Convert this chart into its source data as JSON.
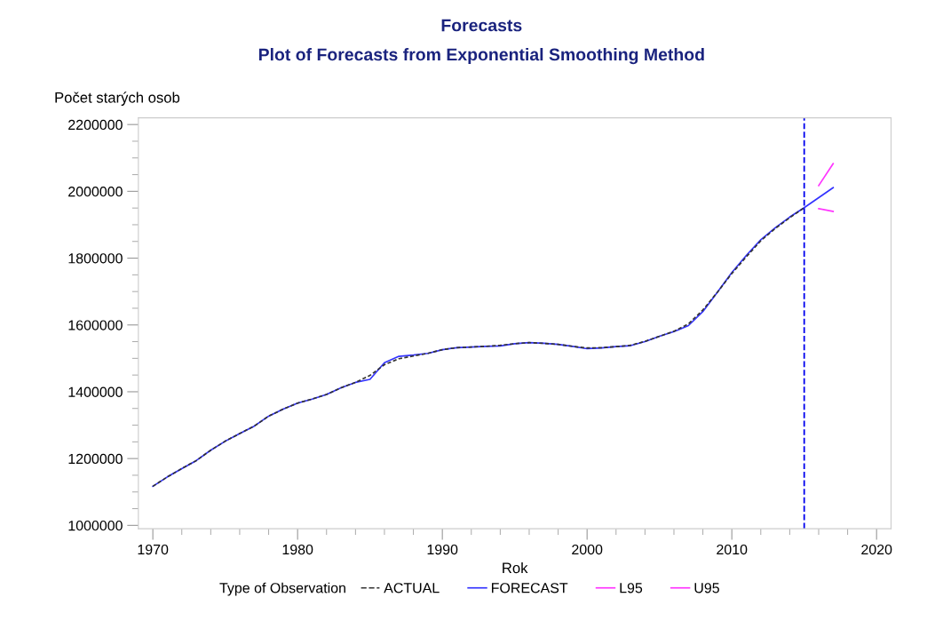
{
  "chart_data": {
    "type": "line",
    "title": "Forecasts",
    "subtitle": "Plot of Forecasts from Exponential Smoothing Method",
    "xlabel": "Rok",
    "ylabel": "Počet starých osob",
    "legend_title": "Type of Observation",
    "legend": "bottom",
    "grid": false,
    "marker": "none",
    "xlim": [
      1969,
      2021
    ],
    "xticks": [
      1970,
      1980,
      1990,
      2000,
      2010,
      2020
    ],
    "ylim": [
      990000,
      2220000
    ],
    "yticks": [
      1000000,
      1200000,
      1400000,
      1600000,
      1800000,
      2000000,
      2200000
    ],
    "ref_lines": [
      {
        "axis": "x",
        "value": 2015,
        "color": "#0000ee",
        "line_style": "dashed"
      }
    ],
    "series": [
      {
        "name": "ACTUAL",
        "color": "#333333",
        "line_style": "dashed",
        "x": [
          1970,
          1971,
          1972,
          1973,
          1974,
          1975,
          1976,
          1977,
          1978,
          1979,
          1980,
          1981,
          1982,
          1983,
          1984,
          1985,
          1986,
          1987,
          1988,
          1989,
          1990,
          1991,
          1992,
          1993,
          1994,
          1995,
          1996,
          1997,
          1998,
          1999,
          2000,
          2001,
          2002,
          2003,
          2004,
          2005,
          2006,
          2007,
          2008,
          2009,
          2010,
          2011,
          2012,
          2013,
          2014,
          2015
        ],
        "values": [
          1117000,
          1145000,
          1170000,
          1194000,
          1225000,
          1252000,
          1275000,
          1297000,
          1327000,
          1348000,
          1366000,
          1378000,
          1392000,
          1412000,
          1428000,
          1449000,
          1481000,
          1499000,
          1507000,
          1515000,
          1526000,
          1532000,
          1534000,
          1536000,
          1539000,
          1544000,
          1547000,
          1545000,
          1542000,
          1536000,
          1531000,
          1532000,
          1535000,
          1539000,
          1551000,
          1566000,
          1581000,
          1603000,
          1645000,
          1698000,
          1754000,
          1804000,
          1852000,
          1889000,
          1921000,
          1951000
        ]
      },
      {
        "name": "FORECAST",
        "color": "#3333ff",
        "line_style": "solid",
        "x": [
          1970,
          1971,
          1972,
          1973,
          1974,
          1975,
          1976,
          1977,
          1978,
          1979,
          1980,
          1981,
          1982,
          1983,
          1984,
          1985,
          1986,
          1987,
          1988,
          1989,
          1990,
          1991,
          1992,
          1993,
          1994,
          1995,
          1996,
          1997,
          1998,
          1999,
          2000,
          2001,
          2002,
          2003,
          2004,
          2005,
          2006,
          2007,
          2008,
          2009,
          2010,
          2011,
          2012,
          2013,
          2014,
          2015,
          2016,
          2017
        ],
        "values": [
          1117000,
          1145000,
          1170000,
          1194000,
          1225000,
          1252000,
          1275000,
          1297000,
          1327000,
          1348000,
          1366000,
          1378000,
          1392000,
          1412000,
          1428000,
          1437000,
          1487000,
          1506000,
          1510000,
          1515000,
          1526000,
          1532000,
          1534000,
          1536000,
          1537000,
          1544000,
          1547000,
          1545000,
          1542000,
          1536000,
          1529000,
          1531000,
          1535000,
          1538000,
          1550000,
          1566000,
          1580000,
          1598000,
          1640000,
          1698000,
          1757000,
          1808000,
          1855000,
          1891000,
          1923000,
          1951000,
          1981000,
          2011000
        ]
      },
      {
        "name": "L95",
        "color": "#ff33ff",
        "line_style": "solid",
        "x": [
          2016,
          2017
        ],
        "values": [
          1948000,
          1940000
        ]
      },
      {
        "name": "U95",
        "color": "#ff33ff",
        "line_style": "solid",
        "x": [
          2016,
          2017
        ],
        "values": [
          2017000,
          2083000
        ]
      }
    ]
  }
}
